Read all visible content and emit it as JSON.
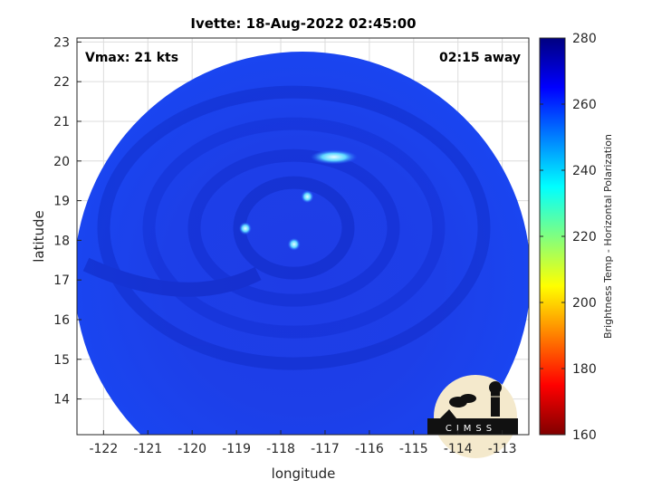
{
  "chart_data": {
    "type": "heatmap",
    "title": "Ivette: 18-Aug-2022 02:45:00",
    "xlabel": "longitude",
    "ylabel": "latitude",
    "xlim": [
      -122.6,
      -112.4
    ],
    "ylim": [
      13.1,
      23.1
    ],
    "xticks": [
      -122,
      -121,
      -120,
      -119,
      -118,
      -117,
      -116,
      -115,
      -114,
      -113
    ],
    "yticks": [
      14,
      15,
      16,
      17,
      18,
      19,
      20,
      21,
      22,
      23
    ],
    "grid": true,
    "annotations": {
      "vmax": "Vmax: 21 kts",
      "time_offset": "02:15 away"
    },
    "colorbar": {
      "label": "Brightness Temp - Horizontal Polarization",
      "min": 160,
      "max": 280,
      "ticks": [
        160,
        180,
        200,
        220,
        240,
        260,
        280
      ],
      "colormap": "jet"
    },
    "field": {
      "shape": "circular swath",
      "center_lon": -117.5,
      "center_lat": 18.2,
      "background_value": 262,
      "features": [
        {
          "name": "warm band north",
          "lon": -116.8,
          "lat": 20.1,
          "value": 245
        },
        {
          "name": "eye-area spot",
          "lon": -118.8,
          "lat": 18.3,
          "value": 250
        },
        {
          "name": "spot",
          "lon": -117.7,
          "lat": 17.9,
          "value": 252
        },
        {
          "name": "spot",
          "lon": -117.4,
          "lat": 19.1,
          "value": 254
        }
      ]
    },
    "logo": {
      "text": "CIMSS"
    }
  }
}
